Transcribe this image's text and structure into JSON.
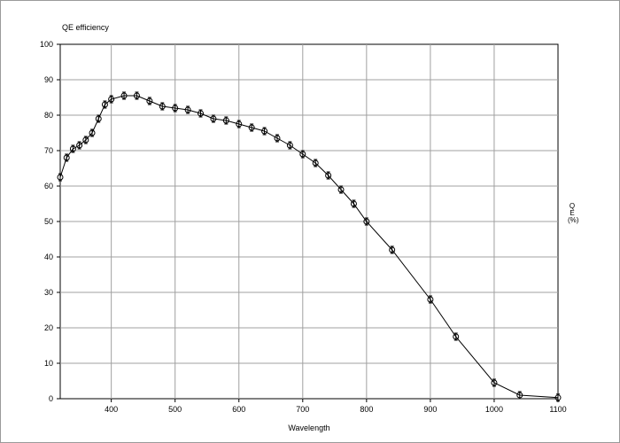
{
  "chart_data": {
    "type": "line",
    "title": "QE efficiency",
    "xlabel": "Wavelength",
    "ylabel": "QE (%)",
    "xlim": [
      320,
      1100
    ],
    "ylim": [
      0,
      100
    ],
    "xticks": [
      400,
      500,
      600,
      700,
      800,
      900,
      1000,
      1100
    ],
    "yticks": [
      0,
      10,
      20,
      30,
      40,
      50,
      60,
      70,
      80,
      90,
      100
    ],
    "grid": true,
    "marker": "circle-with-errorbar",
    "series": [
      {
        "x": [
          320,
          330,
          340,
          350,
          360,
          370,
          380,
          390,
          400,
          420,
          440,
          460,
          480,
          500,
          520,
          540,
          560,
          580,
          600,
          620,
          640,
          660,
          680,
          700,
          720,
          740,
          760,
          780,
          800,
          840,
          900,
          940,
          1000,
          1040,
          1100
        ],
        "y": [
          62.5,
          68,
          70.5,
          71.5,
          73,
          75,
          79,
          83,
          84.5,
          85.5,
          85.5,
          84,
          82.5,
          82,
          81.5,
          80.5,
          79,
          78.5,
          77.5,
          76.5,
          75.5,
          73.5,
          71.5,
          69,
          66.5,
          63,
          59,
          55,
          50,
          42,
          28,
          17.5,
          4.5,
          1,
          0.3
        ]
      }
    ]
  }
}
